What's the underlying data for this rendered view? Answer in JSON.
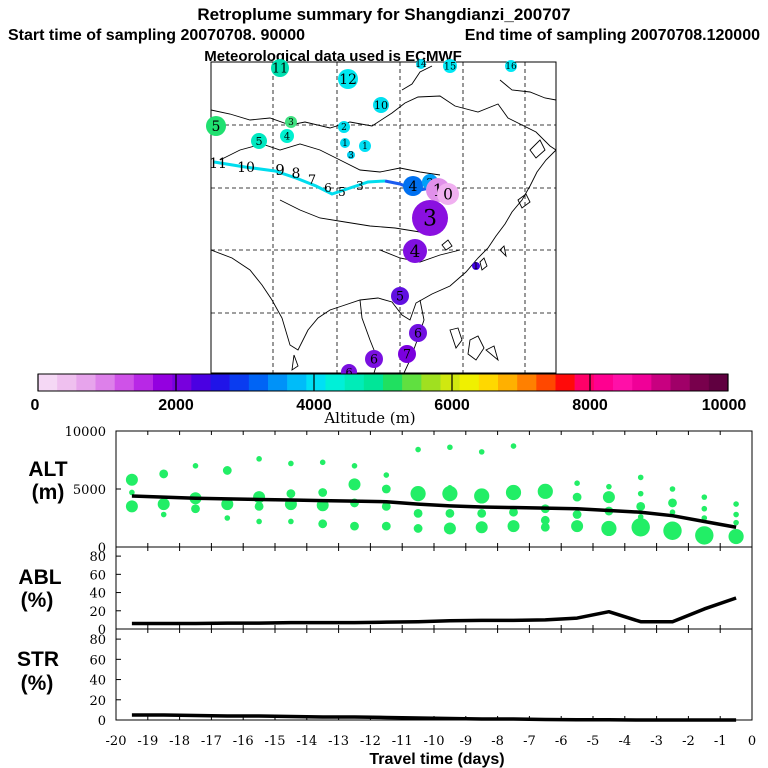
{
  "header": {
    "title": "Retroplume summary for Shangdianzi_200707",
    "start_label": "Start time of sampling 20070708. 90000",
    "end_label": "End time of sampling 20070708.120000",
    "met_label": "Meteorological data used is ECMWF"
  },
  "colorbar": {
    "label": "Altitude (m)",
    "tick_labels": [
      "0",
      "2000",
      "4000",
      "6000",
      "8000",
      "10000"
    ],
    "colors": [
      "#f5d8f5",
      "#efc0ef",
      "#e7a4ec",
      "#dd80ea",
      "#cf52e8",
      "#b828e6",
      "#9400e0",
      "#7800dd",
      "#4a00e2",
      "#2014e8",
      "#0a3cf0",
      "#0064f5",
      "#0092f8",
      "#00bcf9",
      "#00e0f5",
      "#00f0d8",
      "#00ecb8",
      "#00e698",
      "#20e060",
      "#60e040",
      "#a0e020",
      "#d0e810",
      "#f0f000",
      "#ffd800",
      "#ffb000",
      "#ff8000",
      "#ff4800",
      "#ff0a0a",
      "#ff0068",
      "#ff0090",
      "#ff10a8",
      "#f00098",
      "#c80080",
      "#a00068",
      "#78004c",
      "#600040"
    ]
  },
  "map": {
    "plume_labels": [
      "11",
      "12",
      "14",
      "15",
      "16",
      "10",
      "5",
      "5",
      "4",
      "3",
      "2",
      "1",
      "1",
      "3",
      "12",
      "11",
      "10",
      "9",
      "8",
      "7",
      "6",
      "5",
      "4",
      "3",
      "2",
      "1",
      "0",
      "3",
      "4",
      "1",
      "5",
      "6",
      "7",
      "6",
      "6"
    ],
    "background": "#ffffff"
  },
  "alt_panel": {
    "label": "ALT",
    "unit": "(m)",
    "y_ticks": [
      "10000",
      "5000",
      "0"
    ]
  },
  "abl_panel": {
    "label": "ABL",
    "unit": "(%)",
    "y_ticks": [
      "80",
      "60",
      "40",
      "20",
      "0"
    ]
  },
  "str_panel": {
    "label": "STR",
    "unit": "(%)",
    "y_ticks": [
      "80",
      "60",
      "40",
      "20",
      "0"
    ]
  },
  "x_axis": {
    "label": "Travel time (days)",
    "tick_labels": [
      "-20",
      "-19",
      "-18",
      "-17",
      "-16",
      "-15",
      "-14",
      "-13",
      "-12",
      "-11",
      "-10",
      "-9",
      "-8",
      "-7",
      "-6",
      "-5",
      "-4",
      "-3",
      "-2",
      "-1",
      "0"
    ]
  },
  "chart_data": [
    {
      "type": "line",
      "title": "ALT",
      "xlabel": "Travel time (days)",
      "ylabel": "ALT (m)",
      "xlim": [
        -20,
        0
      ],
      "ylim": [
        0,
        10000
      ],
      "series": [
        {
          "name": "mean altitude",
          "color": "#000000",
          "x": [
            -19.5,
            -18.5,
            -17.5,
            -16.5,
            -15.5,
            -14.5,
            -13.5,
            -12.5,
            -11.5,
            -10.5,
            -9.5,
            -8.5,
            -7.5,
            -6.5,
            -5.5,
            -4.5,
            -3.5,
            -2.5,
            -1.5,
            -0.5
          ],
          "values": [
            4400,
            4300,
            4200,
            4150,
            4100,
            4050,
            4000,
            3950,
            3900,
            3700,
            3550,
            3450,
            3400,
            3350,
            3300,
            3150,
            3000,
            2700,
            2200,
            1700
          ]
        },
        {
          "name": "cluster altitudes",
          "color": "#22ee66",
          "points": [
            {
              "x": -19.5,
              "y": 5800,
              "size": 3
            },
            {
              "x": -19.5,
              "y": 3500,
              "size": 3
            },
            {
              "x": -19.5,
              "y": 4700,
              "size": 1
            },
            {
              "x": -18.5,
              "y": 6300,
              "size": 2
            },
            {
              "x": -18.5,
              "y": 3700,
              "size": 3
            },
            {
              "x": -18.5,
              "y": 2800,
              "size": 1
            },
            {
              "x": -17.5,
              "y": 7000,
              "size": 1
            },
            {
              "x": -17.5,
              "y": 4200,
              "size": 3
            },
            {
              "x": -17.5,
              "y": 3300,
              "size": 2
            },
            {
              "x": -16.5,
              "y": 6600,
              "size": 2
            },
            {
              "x": -16.5,
              "y": 3700,
              "size": 3
            },
            {
              "x": -16.5,
              "y": 2500,
              "size": 1
            },
            {
              "x": -15.5,
              "y": 7600,
              "size": 1
            },
            {
              "x": -15.5,
              "y": 4300,
              "size": 3
            },
            {
              "x": -15.5,
              "y": 3500,
              "size": 2
            },
            {
              "x": -15.5,
              "y": 2200,
              "size": 1
            },
            {
              "x": -14.5,
              "y": 7200,
              "size": 1
            },
            {
              "x": -14.5,
              "y": 4600,
              "size": 2
            },
            {
              "x": -14.5,
              "y": 3700,
              "size": 3
            },
            {
              "x": -14.5,
              "y": 2200,
              "size": 1
            },
            {
              "x": -13.5,
              "y": 7300,
              "size": 1
            },
            {
              "x": -13.5,
              "y": 4700,
              "size": 2
            },
            {
              "x": -13.5,
              "y": 3600,
              "size": 3
            },
            {
              "x": -13.5,
              "y": 2000,
              "size": 2
            },
            {
              "x": -12.5,
              "y": 7000,
              "size": 1
            },
            {
              "x": -12.5,
              "y": 5400,
              "size": 3
            },
            {
              "x": -12.5,
              "y": 3800,
              "size": 2
            },
            {
              "x": -12.5,
              "y": 1800,
              "size": 2
            },
            {
              "x": -11.5,
              "y": 6200,
              "size": 1
            },
            {
              "x": -11.5,
              "y": 5000,
              "size": 2
            },
            {
              "x": -11.5,
              "y": 3500,
              "size": 2
            },
            {
              "x": -11.5,
              "y": 1800,
              "size": 2
            },
            {
              "x": -10.5,
              "y": 8400,
              "size": 1
            },
            {
              "x": -10.5,
              "y": 5000,
              "size": 1
            },
            {
              "x": -10.5,
              "y": 4600,
              "size": 4
            },
            {
              "x": -10.5,
              "y": 2900,
              "size": 2
            },
            {
              "x": -10.5,
              "y": 1600,
              "size": 2
            },
            {
              "x": -9.5,
              "y": 8600,
              "size": 1
            },
            {
              "x": -9.5,
              "y": 5100,
              "size": 1
            },
            {
              "x": -9.5,
              "y": 4600,
              "size": 4
            },
            {
              "x": -9.5,
              "y": 2900,
              "size": 2
            },
            {
              "x": -9.5,
              "y": 1600,
              "size": 3
            },
            {
              "x": -8.5,
              "y": 8200,
              "size": 1
            },
            {
              "x": -8.5,
              "y": 4400,
              "size": 4
            },
            {
              "x": -8.5,
              "y": 2900,
              "size": 2
            },
            {
              "x": -8.5,
              "y": 1700,
              "size": 3
            },
            {
              "x": -7.5,
              "y": 8700,
              "size": 1
            },
            {
              "x": -7.5,
              "y": 4700,
              "size": 4
            },
            {
              "x": -7.5,
              "y": 3000,
              "size": 2
            },
            {
              "x": -7.5,
              "y": 1800,
              "size": 3
            },
            {
              "x": -6.5,
              "y": 4800,
              "size": 4
            },
            {
              "x": -6.5,
              "y": 3300,
              "size": 2
            },
            {
              "x": -6.5,
              "y": 2300,
              "size": 2
            },
            {
              "x": -6.5,
              "y": 1700,
              "size": 2
            },
            {
              "x": -5.5,
              "y": 5500,
              "size": 1
            },
            {
              "x": -5.5,
              "y": 4300,
              "size": 2
            },
            {
              "x": -5.5,
              "y": 2800,
              "size": 2
            },
            {
              "x": -5.5,
              "y": 1800,
              "size": 3
            },
            {
              "x": -4.5,
              "y": 5200,
              "size": 1
            },
            {
              "x": -4.5,
              "y": 4300,
              "size": 3
            },
            {
              "x": -4.5,
              "y": 3100,
              "size": 2
            },
            {
              "x": -4.5,
              "y": 1600,
              "size": 4
            },
            {
              "x": -3.5,
              "y": 6000,
              "size": 1
            },
            {
              "x": -3.5,
              "y": 4600,
              "size": 1
            },
            {
              "x": -3.5,
              "y": 3500,
              "size": 2
            },
            {
              "x": -3.5,
              "y": 2600,
              "size": 1
            },
            {
              "x": -3.5,
              "y": 1700,
              "size": 5
            },
            {
              "x": -2.5,
              "y": 5000,
              "size": 1
            },
            {
              "x": -2.5,
              "y": 3800,
              "size": 2
            },
            {
              "x": -2.5,
              "y": 3000,
              "size": 1
            },
            {
              "x": -2.5,
              "y": 1400,
              "size": 5
            },
            {
              "x": -1.5,
              "y": 4300,
              "size": 1
            },
            {
              "x": -1.5,
              "y": 3300,
              "size": 1
            },
            {
              "x": -1.5,
              "y": 2500,
              "size": 1
            },
            {
              "x": -1.5,
              "y": 1000,
              "size": 5
            },
            {
              "x": -0.5,
              "y": 3700,
              "size": 1
            },
            {
              "x": -0.5,
              "y": 2800,
              "size": 1
            },
            {
              "x": -0.5,
              "y": 2100,
              "size": 1
            },
            {
              "x": -0.5,
              "y": 900,
              "size": 4
            }
          ]
        }
      ]
    },
    {
      "type": "line",
      "title": "ABL",
      "xlabel": "Travel time (days)",
      "ylabel": "ABL (%)",
      "xlim": [
        -20,
        0
      ],
      "ylim": [
        0,
        90
      ],
      "series": [
        {
          "name": "ABL fraction",
          "color": "#000000",
          "x": [
            -19.5,
            -18.5,
            -17.5,
            -16.5,
            -15.5,
            -14.5,
            -13.5,
            -12.5,
            -11.5,
            -10.5,
            -9.5,
            -8.5,
            -7.5,
            -6.5,
            -5.5,
            -4.5,
            -3.5,
            -2.5,
            -1.5,
            -0.5
          ],
          "values": [
            6,
            6,
            6,
            6.5,
            6.5,
            7,
            7,
            7,
            7.5,
            8,
            9,
            9.5,
            9.5,
            10,
            12,
            19,
            8,
            8,
            22,
            34
          ]
        }
      ]
    },
    {
      "type": "line",
      "title": "STR",
      "xlabel": "Travel time (days)",
      "ylabel": "STR (%)",
      "xlim": [
        -20,
        0
      ],
      "ylim": [
        0,
        90
      ],
      "series": [
        {
          "name": "STR fraction",
          "color": "#000000",
          "x": [
            -19.5,
            -18.5,
            -17.5,
            -16.5,
            -15.5,
            -14.5,
            -13.5,
            -12.5,
            -11.5,
            -10.5,
            -9.5,
            -8.5,
            -7.5,
            -6.5,
            -5.5,
            -4.5,
            -3.5,
            -2.5,
            -1.5,
            -0.5
          ],
          "values": [
            5,
            5,
            4.5,
            4,
            4,
            3.5,
            3,
            3,
            2.5,
            2,
            1.5,
            1,
            1,
            0.5,
            0.3,
            0.2,
            0,
            0,
            0,
            0
          ]
        }
      ]
    }
  ]
}
